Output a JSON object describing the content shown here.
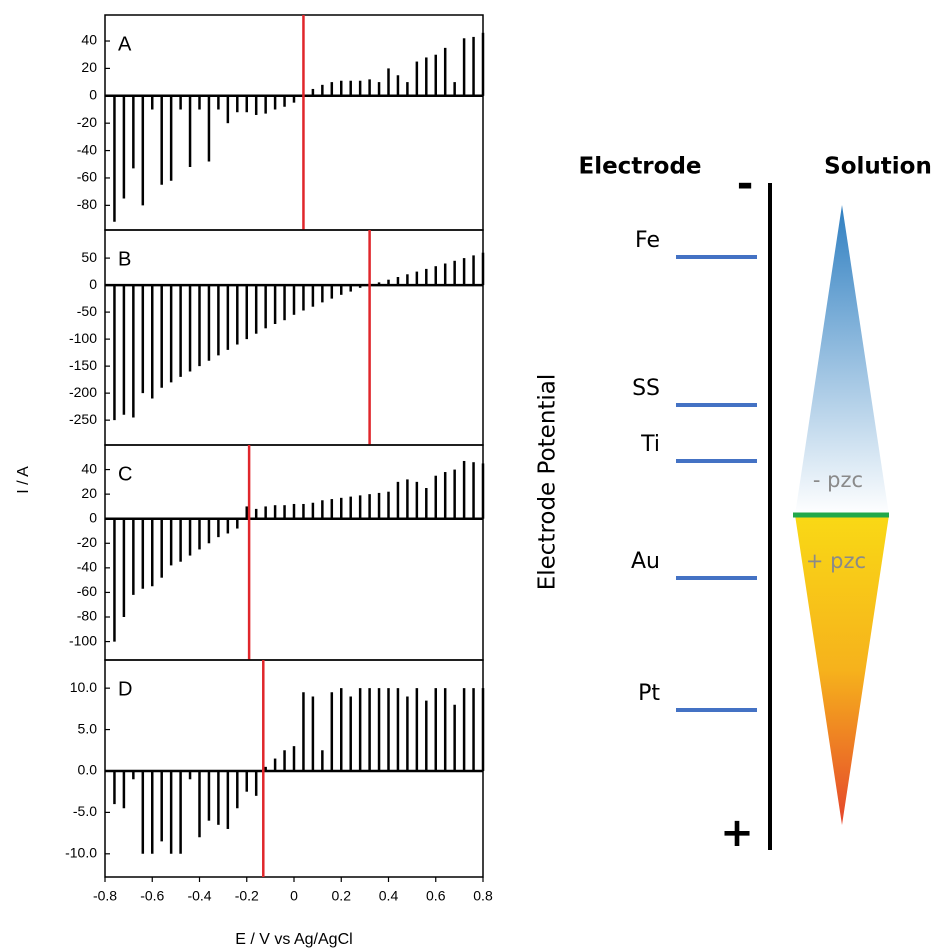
{
  "chart_data": [
    {
      "type": "stem",
      "label": "A",
      "color": "#000000",
      "x": [
        -0.76,
        -0.72,
        -0.68,
        -0.64,
        -0.6,
        -0.56,
        -0.52,
        -0.48,
        -0.44,
        -0.4,
        -0.36,
        -0.32,
        -0.28,
        -0.24,
        -0.2,
        -0.16,
        -0.12,
        -0.08,
        -0.04,
        0,
        0.04,
        0.08,
        0.12,
        0.16,
        0.2,
        0.24,
        0.28,
        0.32,
        0.36,
        0.4,
        0.44,
        0.48,
        0.52,
        0.56,
        0.6,
        0.64,
        0.68,
        0.72,
        0.76,
        0.8
      ],
      "values": [
        -92,
        -75,
        -53,
        -80,
        -10,
        -65,
        -62,
        -10,
        -52,
        -10,
        -48,
        -10,
        -20,
        -12,
        -12,
        -14,
        -13,
        -10,
        -8,
        -5,
        0,
        5,
        8,
        10,
        11,
        11,
        11,
        12,
        10,
        20,
        15,
        10,
        25,
        28,
        30,
        35,
        10,
        42,
        43,
        46
      ],
      "xlim": [
        -0.8,
        0.8
      ],
      "ylim": [
        -98,
        59
      ],
      "yticks": [
        40,
        20,
        0,
        -20,
        -40,
        -60,
        -80
      ],
      "vline": {
        "x": 0.04,
        "color": "#e0262b"
      }
    },
    {
      "type": "stem",
      "label": "B",
      "color": "#000000",
      "ylabel": "I / A",
      "x": [
        -0.76,
        -0.72,
        -0.68,
        -0.64,
        -0.6,
        -0.56,
        -0.52,
        -0.48,
        -0.44,
        -0.4,
        -0.36,
        -0.32,
        -0.28,
        -0.24,
        -0.2,
        -0.16,
        -0.12,
        -0.08,
        -0.04,
        0,
        0.04,
        0.08,
        0.12,
        0.16,
        0.2,
        0.24,
        0.28,
        0.32,
        0.36,
        0.4,
        0.44,
        0.48,
        0.52,
        0.56,
        0.6,
        0.64,
        0.68,
        0.72,
        0.76,
        0.8
      ],
      "values": [
        -250,
        -240,
        -245,
        -200,
        -210,
        -190,
        -180,
        -170,
        -160,
        -150,
        -140,
        -130,
        -120,
        -110,
        -100,
        -90,
        -80,
        -72,
        -65,
        -55,
        -47,
        -40,
        -32,
        -25,
        -18,
        -12,
        -5,
        0,
        5,
        10,
        15,
        20,
        25,
        30,
        35,
        40,
        45,
        50,
        55,
        60
      ],
      "xlim": [
        -0.8,
        0.8
      ],
      "ylim": [
        -296,
        102
      ],
      "yticks": [
        50,
        0,
        -50,
        -100,
        -150,
        -200,
        -250
      ],
      "vline": {
        "x": 0.32,
        "color": "#e0262b"
      }
    },
    {
      "type": "stem",
      "label": "C",
      "color": "#000000",
      "x": [
        -0.76,
        -0.72,
        -0.68,
        -0.64,
        -0.6,
        -0.56,
        -0.52,
        -0.48,
        -0.44,
        -0.4,
        -0.36,
        -0.32,
        -0.28,
        -0.24,
        -0.2,
        -0.16,
        -0.12,
        -0.08,
        -0.04,
        0,
        0.04,
        0.08,
        0.12,
        0.16,
        0.2,
        0.24,
        0.28,
        0.32,
        0.36,
        0.4,
        0.44,
        0.48,
        0.52,
        0.56,
        0.6,
        0.64,
        0.68,
        0.72,
        0.76,
        0.8
      ],
      "values": [
        -100,
        -80,
        -62,
        -57,
        -55,
        -48,
        -38,
        -35,
        -30,
        -25,
        -20,
        -15,
        -12,
        -8,
        10,
        8,
        10,
        11,
        11,
        12,
        12,
        13,
        15,
        16,
        17,
        18,
        19,
        20,
        21,
        22,
        30,
        32,
        30,
        25,
        35,
        38,
        40,
        47,
        46,
        45
      ],
      "xlim": [
        -0.8,
        0.8
      ],
      "ylim": [
        -115,
        60
      ],
      "yticks": [
        40,
        20,
        0,
        -20,
        -40,
        -60,
        -80,
        -100
      ],
      "vline": {
        "x": -0.19,
        "color": "#e0262b"
      }
    },
    {
      "type": "stem",
      "label": "D",
      "color": "#000000",
      "xlabel": "E / V vs Ag/AgCl",
      "x": [
        -0.76,
        -0.72,
        -0.68,
        -0.64,
        -0.6,
        -0.56,
        -0.52,
        -0.48,
        -0.44,
        -0.4,
        -0.36,
        -0.32,
        -0.28,
        -0.24,
        -0.2,
        -0.16,
        -0.12,
        -0.08,
        -0.04,
        0,
        0.04,
        0.08,
        0.12,
        0.16,
        0.2,
        0.24,
        0.28,
        0.32,
        0.36,
        0.4,
        0.44,
        0.48,
        0.52,
        0.56,
        0.6,
        0.64,
        0.68,
        0.72,
        0.76,
        0.8
      ],
      "values": [
        -4,
        -4.5,
        -1,
        -10,
        -10,
        -8.5,
        -10,
        -10,
        -1,
        -8,
        -6,
        -6.5,
        -7,
        -4.5,
        -2.5,
        -3,
        0.5,
        1.5,
        2.5,
        3,
        9.5,
        9,
        2.5,
        9.5,
        10,
        9,
        10,
        10,
        10,
        10,
        10,
        9,
        10,
        8.5,
        10,
        10,
        8,
        10,
        10,
        10
      ],
      "xlim": [
        -0.8,
        0.8
      ],
      "ylim": [
        -12.8,
        13.4
      ],
      "yticks": [
        {
          "value": 10,
          "label": "10.0"
        },
        {
          "value": 5,
          "label": "5.0"
        },
        {
          "value": 0,
          "label": "0.0"
        },
        {
          "value": -5,
          "label": "-5.0"
        },
        {
          "value": -10,
          "label": "-10.0"
        }
      ],
      "xticks": [
        -0.8,
        -0.6,
        -0.4,
        -0.2,
        0,
        0.2,
        0.4,
        0.6,
        0.8
      ],
      "vline": {
        "x": -0.13,
        "color": "#e0262b"
      }
    }
  ],
  "diagram": {
    "electrode_header": "Electrode",
    "solution_header": "Solution",
    "axis_label": "Electrode Potential",
    "minus": "-",
    "plus": "+",
    "metals": [
      {
        "label": "Fe"
      },
      {
        "label": "SS"
      },
      {
        "label": "Ti"
      },
      {
        "label": "Au"
      },
      {
        "label": "Pt"
      }
    ],
    "zones": [
      "- pzc",
      "+ pzc"
    ]
  }
}
